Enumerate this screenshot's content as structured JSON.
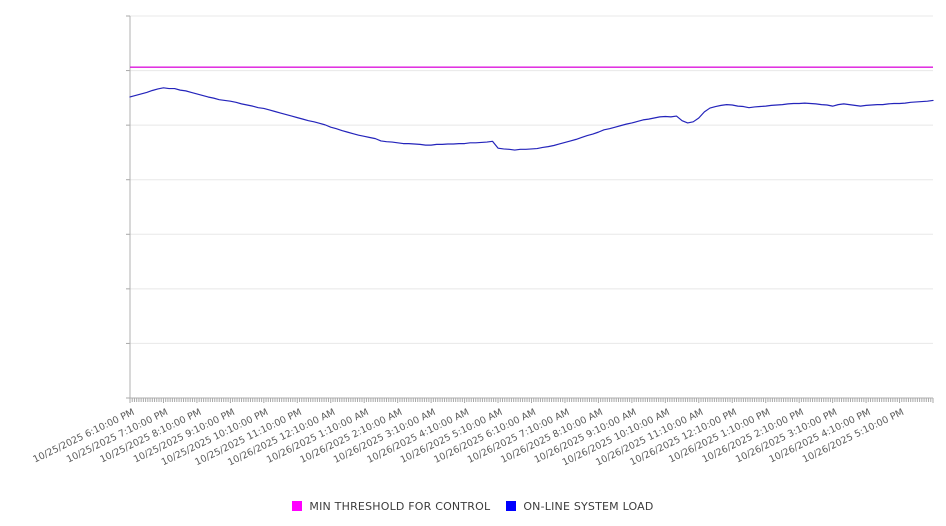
{
  "chart_data": {
    "type": "line",
    "title": "",
    "xlabel": "",
    "ylabel": "",
    "y_axis_labels_visible": false,
    "ylim": [
      0,
      100
    ],
    "y_gridline_divisions": 7,
    "grid": "horizontal-only",
    "legend_position": "bottom-center",
    "x_start": "10/25/2025 6:10:00 PM",
    "x_end": "10/26/2025 6:10:00 PM",
    "x_tick_labels": [
      "10/25/2025 6:10:00 PM",
      "10/25/2025 7:10:00 PM",
      "10/25/2025 8:10:00 PM",
      "10/25/2025 9:10:00 PM",
      "10/25/2025 10:10:00 PM",
      "10/25/2025 11:10:00 PM",
      "10/26/2025 12:10:00 AM",
      "10/26/2025 1:10:00 AM",
      "10/26/2025 2:10:00 AM",
      "10/26/2025 3:10:00 AM",
      "10/26/2025 4:10:00 AM",
      "10/26/2025 5:10:00 AM",
      "10/26/2025 6:10:00 AM",
      "10/26/2025 7:10:00 AM",
      "10/26/2025 8:10:00 AM",
      "10/26/2025 9:10:00 AM",
      "10/26/2025 10:10:00 AM",
      "10/26/2025 11:10:00 AM",
      "10/26/2025 12:10:00 PM",
      "10/26/2025 1:10:00 PM",
      "10/26/2025 2:10:00 PM",
      "10/26/2025 3:10:00 PM",
      "10/26/2025 4:10:00 PM",
      "10/26/2025 5:10:00 PM"
    ],
    "legend": [
      {
        "label": "MIN THRESHOLD FOR CONTROL",
        "swatch_color": "#ff00ff"
      },
      {
        "label": "ON-LINE SYSTEM LOAD",
        "swatch_color": "#0000ff"
      }
    ],
    "series": [
      {
        "name": "MIN THRESHOLD FOR CONTROL",
        "type": "threshold",
        "color": "#dd16dd",
        "value": 86.6
      },
      {
        "name": "ON-LINE SYSTEM LOAD",
        "type": "line",
        "color": "#2424bb",
        "interval_minutes": 10,
        "values": [
          78.8,
          79.2,
          79.6,
          80.0,
          80.5,
          80.9,
          81.2,
          81.0,
          81.0,
          80.6,
          80.4,
          80.0,
          79.6,
          79.2,
          78.8,
          78.5,
          78.1,
          77.9,
          77.7,
          77.4,
          77.0,
          76.7,
          76.4,
          76.0,
          75.8,
          75.4,
          75.0,
          74.6,
          74.2,
          73.8,
          73.4,
          73.0,
          72.6,
          72.3,
          71.9,
          71.5,
          70.9,
          70.5,
          70.0,
          69.6,
          69.2,
          68.8,
          68.5,
          68.2,
          67.9,
          67.3,
          67.1,
          67.0,
          66.8,
          66.6,
          66.6,
          66.5,
          66.4,
          66.2,
          66.2,
          66.4,
          66.4,
          66.5,
          66.5,
          66.6,
          66.6,
          66.8,
          66.8,
          66.9,
          67.0,
          67.2,
          65.4,
          65.2,
          65.1,
          64.9,
          65.1,
          65.1,
          65.2,
          65.3,
          65.6,
          65.8,
          66.1,
          66.5,
          66.9,
          67.3,
          67.7,
          68.2,
          68.7,
          69.1,
          69.6,
          70.2,
          70.5,
          70.9,
          71.3,
          71.7,
          72.0,
          72.4,
          72.8,
          73.0,
          73.3,
          73.6,
          73.7,
          73.6,
          73.8,
          72.6,
          72.0,
          72.3,
          73.3,
          74.9,
          75.9,
          76.3,
          76.6,
          76.8,
          76.7,
          76.4,
          76.3,
          76.0,
          76.2,
          76.3,
          76.4,
          76.6,
          76.7,
          76.8,
          77.0,
          77.1,
          77.1,
          77.2,
          77.1,
          77.0,
          76.8,
          76.7,
          76.4,
          76.8,
          77.0,
          76.8,
          76.6,
          76.4,
          76.6,
          76.7,
          76.8,
          76.8,
          77.0,
          77.1,
          77.1,
          77.2,
          77.4,
          77.5,
          77.6,
          77.7,
          77.9
        ]
      }
    ],
    "colors": {
      "background": "#ffffff",
      "gridline": "#e8e8e8",
      "axis_line": "#b0b0b0",
      "tick": "#a8a8a8",
      "tick_label_text": "#595959",
      "legend_text": "#3d3d3d"
    }
  }
}
